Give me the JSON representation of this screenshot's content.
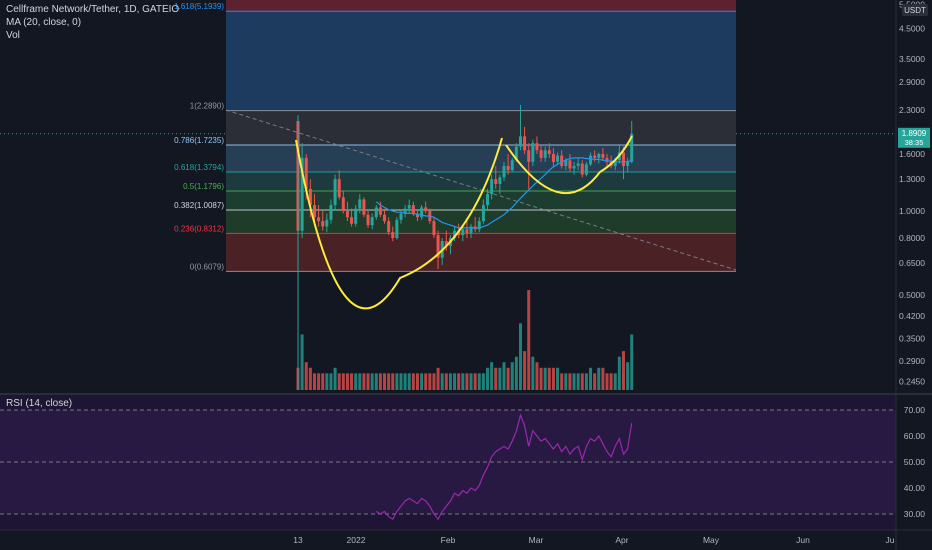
{
  "header": {
    "symbol": "Cellframe Network/Tether, 1D, GATEIO",
    "ma_label": "MA (20, close, 0)",
    "vol_label": "Vol",
    "rsi_label": "RSI (14, close)"
  },
  "price_scale": {
    "currency": "USDT",
    "labels": [
      "5.5000",
      "4.5000",
      "3.5000",
      "2.9000",
      "2.3000",
      "1.6000",
      "1.3000",
      "1.0000",
      "0.8000",
      "0.6500",
      "0.5000",
      "0.4200",
      "0.3500",
      "0.2900",
      "0.2450"
    ],
    "last_price": "1.8909",
    "countdown": "38:35"
  },
  "rsi_scale": {
    "labels": [
      "70.00",
      "60.00",
      "50.00",
      "40.00",
      "30.00"
    ]
  },
  "time_axis": {
    "labels": [
      "13",
      "2022",
      "Feb",
      "Mar",
      "Apr",
      "May",
      "Jun",
      "Ju"
    ]
  },
  "fib_levels": [
    {
      "label": "1.618(5.1939)",
      "color": "#2196f3"
    },
    {
      "label": "1(2.2890)",
      "color": "#9598a1"
    },
    {
      "label": "0.786(1.7235)",
      "color": "#90caf9"
    },
    {
      "label": "0.618(1.3794)",
      "color": "#26a69a"
    },
    {
      "label": "0.5(1.1796)",
      "color": "#4caf50"
    },
    {
      "label": "0.382(1.0087)",
      "color": "#d1d4dc"
    },
    {
      "label": "0.236(0.8312)",
      "color": "#f23645"
    },
    {
      "label": "0(0.6079)",
      "color": "#9598a1"
    }
  ],
  "colors": {
    "up": "#26a69a",
    "down": "#ef5350",
    "ma": "#2196f3",
    "cup": "#ffeb3b",
    "rsi": "#9c27b0"
  },
  "chart_data": {
    "type": "candlestick",
    "title": "Cellframe Network/Tether, 1D, GATEIO",
    "y_scale": "log",
    "ylim": [
      0.24,
      6.0
    ],
    "candles": [
      [
        2.1,
        2.2,
        0.72,
        0.85
      ],
      [
        0.85,
        1.75,
        0.8,
        1.55
      ],
      [
        1.55,
        1.6,
        1.1,
        1.2
      ],
      [
        1.2,
        1.3,
        0.95,
        1.05
      ],
      [
        1.05,
        1.15,
        0.9,
        0.95
      ],
      [
        0.95,
        1.05,
        0.88,
        0.92
      ],
      [
        0.92,
        1.0,
        0.85,
        0.88
      ],
      [
        0.88,
        0.98,
        0.84,
        0.93
      ],
      [
        0.93,
        1.1,
        0.9,
        1.05
      ],
      [
        1.05,
        1.35,
        1.0,
        1.3
      ],
      [
        1.3,
        1.4,
        1.1,
        1.12
      ],
      [
        1.12,
        1.18,
        0.98,
        1.0
      ],
      [
        1.0,
        1.08,
        0.92,
        0.95
      ],
      [
        0.95,
        1.02,
        0.88,
        0.9
      ],
      [
        0.9,
        1.05,
        0.88,
        1.02
      ],
      [
        1.02,
        1.15,
        0.98,
        1.1
      ],
      [
        1.1,
        1.12,
        0.95,
        0.97
      ],
      [
        0.97,
        1.0,
        0.87,
        0.89
      ],
      [
        0.89,
        0.98,
        0.86,
        0.95
      ],
      [
        0.95,
        1.05,
        0.93,
        1.03
      ],
      [
        1.03,
        1.08,
        0.95,
        0.97
      ],
      [
        0.97,
        1.02,
        0.9,
        0.92
      ],
      [
        0.92,
        0.95,
        0.82,
        0.84
      ],
      [
        0.84,
        0.88,
        0.78,
        0.8
      ],
      [
        0.8,
        0.95,
        0.79,
        0.93
      ],
      [
        0.93,
        1.0,
        0.9,
        0.98
      ],
      [
        0.98,
        1.05,
        0.95,
        1.02
      ],
      [
        1.02,
        1.1,
        0.98,
        1.05
      ],
      [
        1.05,
        1.08,
        0.96,
        0.98
      ],
      [
        0.98,
        1.0,
        0.92,
        0.95
      ],
      [
        0.95,
        1.05,
        0.93,
        1.03
      ],
      [
        1.03,
        1.08,
        0.98,
        1.0
      ],
      [
        1.0,
        1.02,
        0.9,
        0.92
      ],
      [
        0.92,
        0.95,
        0.8,
        0.82
      ],
      [
        0.82,
        0.85,
        0.62,
        0.68
      ],
      [
        0.68,
        0.8,
        0.64,
        0.78
      ],
      [
        0.78,
        0.85,
        0.72,
        0.75
      ],
      [
        0.75,
        0.82,
        0.7,
        0.8
      ],
      [
        0.8,
        0.88,
        0.78,
        0.85
      ],
      [
        0.85,
        0.9,
        0.8,
        0.82
      ],
      [
        0.82,
        0.88,
        0.78,
        0.86
      ],
      [
        0.86,
        0.92,
        0.8,
        0.83
      ],
      [
        0.83,
        0.9,
        0.8,
        0.88
      ],
      [
        0.88,
        0.95,
        0.84,
        0.86
      ],
      [
        0.86,
        0.95,
        0.84,
        0.92
      ],
      [
        0.92,
        1.1,
        0.9,
        1.05
      ],
      [
        1.05,
        1.2,
        1.0,
        1.15
      ],
      [
        1.15,
        1.35,
        1.1,
        1.3
      ],
      [
        1.3,
        1.45,
        1.2,
        1.25
      ],
      [
        1.25,
        1.35,
        1.15,
        1.32
      ],
      [
        1.32,
        1.5,
        1.28,
        1.45
      ],
      [
        1.45,
        1.6,
        1.35,
        1.4
      ],
      [
        1.4,
        1.55,
        1.38,
        1.52
      ],
      [
        1.52,
        1.75,
        1.5,
        1.7
      ],
      [
        1.7,
        2.4,
        1.65,
        1.85
      ],
      [
        1.85,
        2.0,
        1.6,
        1.65
      ],
      [
        1.65,
        1.75,
        1.2,
        1.5
      ],
      [
        1.5,
        1.8,
        1.45,
        1.75
      ],
      [
        1.75,
        1.85,
        1.6,
        1.65
      ],
      [
        1.65,
        1.72,
        1.5,
        1.55
      ],
      [
        1.55,
        1.7,
        1.5,
        1.65
      ],
      [
        1.65,
        1.75,
        1.55,
        1.6
      ],
      [
        1.6,
        1.68,
        1.45,
        1.5
      ],
      [
        1.5,
        1.62,
        1.48,
        1.58
      ],
      [
        1.58,
        1.65,
        1.42,
        1.45
      ],
      [
        1.45,
        1.55,
        1.4,
        1.52
      ],
      [
        1.52,
        1.6,
        1.38,
        1.42
      ],
      [
        1.42,
        1.5,
        1.35,
        1.45
      ],
      [
        1.45,
        1.55,
        1.4,
        1.48
      ],
      [
        1.48,
        1.52,
        1.32,
        1.35
      ],
      [
        1.35,
        1.5,
        1.33,
        1.47
      ],
      [
        1.47,
        1.62,
        1.45,
        1.58
      ],
      [
        1.58,
        1.65,
        1.5,
        1.55
      ],
      [
        1.55,
        1.62,
        1.48,
        1.6
      ],
      [
        1.6,
        1.68,
        1.52,
        1.55
      ],
      [
        1.55,
        1.6,
        1.45,
        1.5
      ],
      [
        1.5,
        1.58,
        1.42,
        1.45
      ],
      [
        1.45,
        1.55,
        1.4,
        1.52
      ],
      [
        1.52,
        1.72,
        1.48,
        1.62
      ],
      [
        1.62,
        1.7,
        1.3,
        1.45
      ],
      [
        1.45,
        1.55,
        1.38,
        1.5
      ],
      [
        1.5,
        2.1,
        1.48,
        1.89
      ]
    ],
    "volume_scale": "relative",
    "volume": [
      4,
      10,
      5,
      4,
      3,
      3,
      3,
      3,
      3,
      4,
      3,
      3,
      3,
      3,
      3,
      3,
      3,
      3,
      3,
      3,
      3,
      3,
      3,
      3,
      3,
      3,
      3,
      3,
      3,
      3,
      3,
      3,
      3,
      3,
      4,
      3,
      3,
      3,
      3,
      3,
      3,
      3,
      3,
      3,
      3,
      3,
      4,
      5,
      4,
      4,
      5,
      4,
      5,
      6,
      12,
      7,
      18,
      6,
      5,
      4,
      4,
      4,
      4,
      4,
      3,
      3,
      3,
      3,
      3,
      3,
      3,
      4,
      3,
      4,
      4,
      3,
      3,
      3,
      6,
      7,
      5,
      10
    ],
    "ma20": [
      null,
      null,
      null,
      null,
      null,
      null,
      null,
      null,
      null,
      null,
      null,
      null,
      null,
      null,
      null,
      null,
      null,
      null,
      null,
      1.08,
      1.05,
      1.03,
      1.01,
      1.0,
      0.99,
      0.99,
      0.98,
      0.98,
      0.98,
      0.97,
      0.97,
      0.96,
      0.96,
      0.95,
      0.93,
      0.91,
      0.9,
      0.89,
      0.88,
      0.87,
      0.87,
      0.87,
      0.87,
      0.87,
      0.87,
      0.88,
      0.89,
      0.91,
      0.93,
      0.95,
      0.97,
      1.0,
      1.03,
      1.07,
      1.11,
      1.15,
      1.19,
      1.23,
      1.27,
      1.31,
      1.35,
      1.4,
      1.44,
      1.47,
      1.5,
      1.52,
      1.54,
      1.55,
      1.55,
      1.55,
      1.54,
      1.54,
      1.53,
      1.53,
      1.52,
      1.51,
      1.51,
      1.5,
      1.5,
      1.5,
      1.5,
      1.52
    ],
    "rsi": [
      null,
      null,
      null,
      null,
      null,
      null,
      null,
      null,
      null,
      null,
      null,
      null,
      null,
      null,
      null,
      null,
      null,
      null,
      null,
      31,
      30,
      31,
      29,
      28,
      31,
      33,
      35,
      36,
      35,
      34,
      36,
      35,
      33,
      30,
      28,
      31,
      33,
      35,
      38,
      37,
      39,
      38,
      40,
      39,
      41,
      45,
      48,
      52,
      54,
      55,
      56,
      55,
      58,
      62,
      68,
      64,
      56,
      62,
      60,
      58,
      59,
      57,
      55,
      57,
      54,
      56,
      53,
      55,
      56,
      51,
      56,
      59,
      58,
      60,
      57,
      54,
      52,
      56,
      59,
      53,
      55,
      65
    ],
    "rsi_levels": [
      70,
      50,
      30
    ],
    "fib": {
      "1.618": 5.1939,
      "1": 2.289,
      "0.786": 1.7235,
      "0.618": 1.3794,
      "0.5": 1.1796,
      "0.382": 1.0087,
      "0.236": 0.8312,
      "0": 0.6079
    },
    "x_labels": [
      "13",
      "2022",
      "Feb",
      "Mar",
      "Apr",
      "May",
      "Jun",
      "Ju"
    ]
  }
}
